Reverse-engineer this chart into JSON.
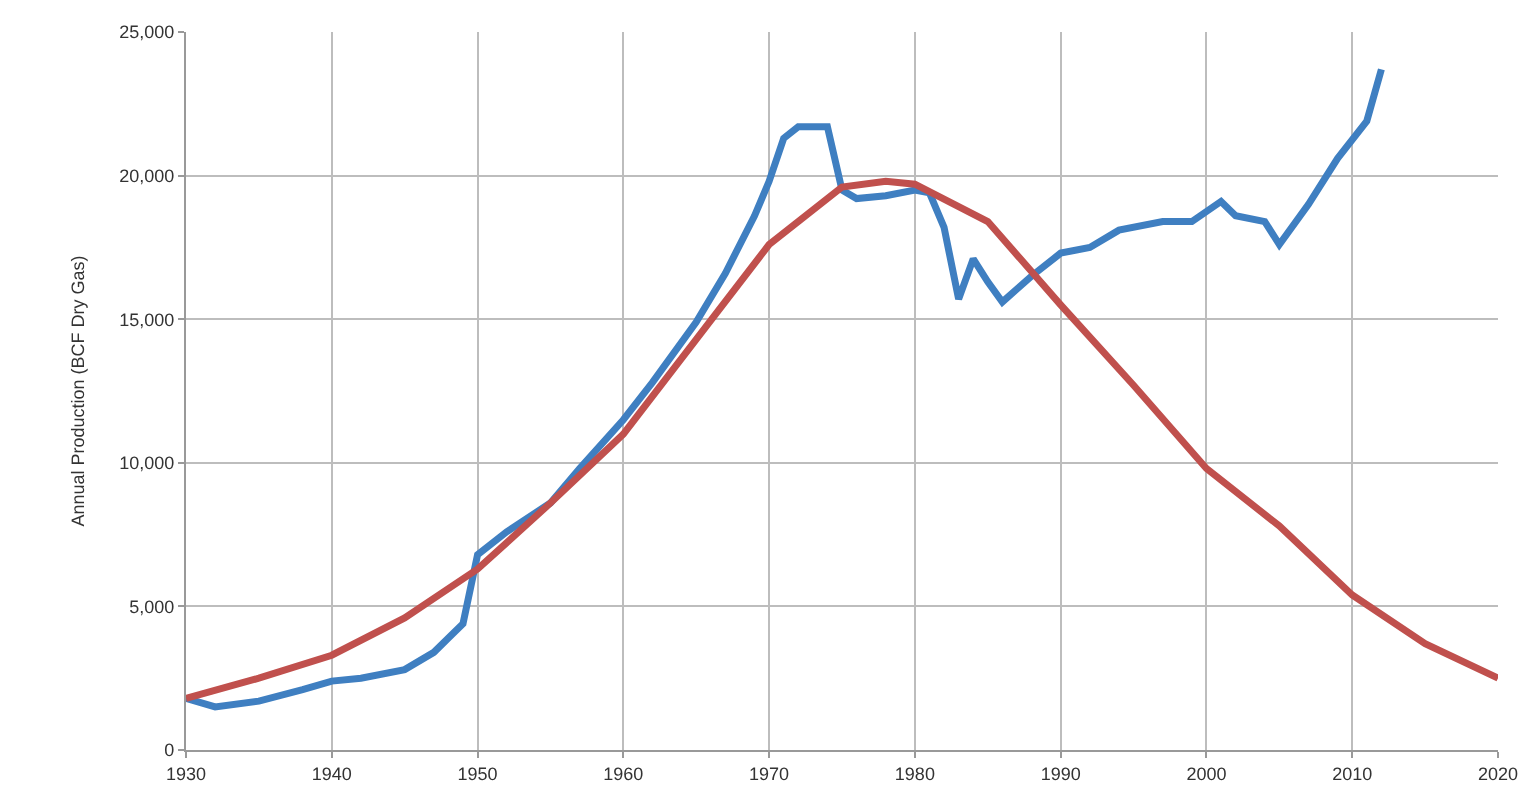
{
  "chart_data": {
    "type": "line",
    "ylabel": "Annual Production (BCF Dry Gas)",
    "xlim": [
      1930,
      2020
    ],
    "xticks": [
      1930,
      1940,
      1950,
      1960,
      1970,
      1980,
      1990,
      2000,
      2010,
      2020
    ],
    "ylim": [
      0,
      25000
    ],
    "yticks": [
      {
        "value": 0,
        "label": "0"
      },
      {
        "value": 5000,
        "label": "5,000"
      },
      {
        "value": 10000,
        "label": "10,000"
      },
      {
        "value": 15000,
        "label": "15,000"
      },
      {
        "value": 20000,
        "label": "20,000"
      },
      {
        "value": 25000,
        "label": "25,000"
      }
    ],
    "grid": true,
    "legend": false,
    "marker": "none",
    "line_style": "solid",
    "series": [
      {
        "color": "#3f7fc1",
        "x": [
          1930,
          1932,
          1935,
          1938,
          1940,
          1942,
          1945,
          1947,
          1948,
          1949,
          1950,
          1952,
          1955,
          1957,
          1960,
          1962,
          1965,
          1967,
          1969,
          1970,
          1971,
          1972,
          1973,
          1974,
          1975,
          1976,
          1978,
          1980,
          1981,
          1982,
          1983,
          1984,
          1985,
          1986,
          1988,
          1990,
          1992,
          1994,
          1997,
          1999,
          2001,
          2002,
          2004,
          2005,
          2007,
          2009,
          2011,
          2012
        ],
        "values": [
          1800,
          1500,
          1700,
          2100,
          2400,
          2500,
          2800,
          3400,
          3900,
          4400,
          6800,
          7600,
          8600,
          9800,
          11500,
          12800,
          14900,
          16600,
          18600,
          19800,
          21300,
          21700,
          21700,
          21700,
          19500,
          19200,
          19300,
          19500,
          19400,
          18200,
          15700,
          17100,
          16300,
          15600,
          16500,
          17300,
          17500,
          18100,
          18400,
          18400,
          19100,
          18600,
          18400,
          17600,
          19000,
          20600,
          21900,
          23700
        ]
      },
      {
        "color": "#c0504d",
        "x": [
          1930,
          1935,
          1940,
          1945,
          1950,
          1955,
          1960,
          1965,
          1970,
          1975,
          1978,
          1980,
          1985,
          1990,
          1995,
          2000,
          2005,
          2010,
          2015,
          2020
        ],
        "values": [
          1800,
          2500,
          3300,
          4600,
          6300,
          8600,
          11000,
          14300,
          17600,
          19600,
          19800,
          19700,
          18400,
          15500,
          12700,
          9800,
          7800,
          5400,
          3700,
          2500
        ]
      }
    ]
  }
}
